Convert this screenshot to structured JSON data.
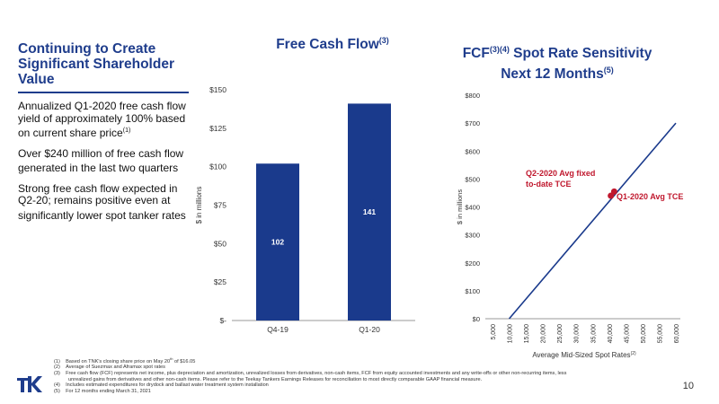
{
  "title": "Continuing to Create Significant Shareholder Value",
  "bullets": [
    {
      "text": "Annualized Q1-2020 free cash flow yield of approximately 100%  based on current share price",
      "sup": "(1)"
    },
    {
      "text": "Over $240 million of free cash flow generated in the last two quarters",
      "sup": ""
    },
    {
      "text": "Strong free cash flow expected in Q2-20; remains positive even at significantly lower spot tanker rates",
      "sup": ""
    }
  ],
  "chart_data": [
    {
      "type": "bar",
      "title": "Free Cash Flow",
      "title_sup": "(3)",
      "ylabel": "$ in millions",
      "categories": [
        "Q4-19",
        "Q1-20"
      ],
      "values": [
        102,
        141
      ],
      "data_labels": [
        "102",
        "141"
      ],
      "ylim": [
        0,
        150
      ],
      "yticks": [
        0,
        25,
        50,
        75,
        100,
        125,
        150
      ],
      "ytick_labels": [
        "$-",
        "$25",
        "$50",
        "$75",
        "$100",
        "$125",
        "$150"
      ],
      "color": "#1a3a8c",
      "grid": false
    },
    {
      "type": "line",
      "title": "FCF",
      "title_sup": "(3)(4)",
      "title_rest": " Spot Rate Sensitivity",
      "title_line2": "Next 12 Months",
      "title_line2_sup": "(5)",
      "xlabel": "Average Mid-Sized Spot Rates",
      "xlabel_sup": "(2)",
      "ylabel": "$ in millions",
      "xlim": [
        5000,
        60000
      ],
      "ylim": [
        0,
        800
      ],
      "xticks": [
        5000,
        10000,
        15000,
        20000,
        25000,
        30000,
        35000,
        40000,
        45000,
        50000,
        55000,
        60000
      ],
      "xtick_labels": [
        "5,000",
        "10,000",
        "15,000",
        "20,000",
        "25,000",
        "30,000",
        "35,000",
        "40,000",
        "45,000",
        "50,000",
        "55,000",
        "60,000"
      ],
      "yticks": [
        0,
        100,
        200,
        300,
        400,
        500,
        600,
        700,
        800
      ],
      "ytick_labels": [
        "$0",
        "$100",
        "$200",
        "$300",
        "$400",
        "$500",
        "$600",
        "$700",
        "$800"
      ],
      "series": [
        {
          "x": [
            10000,
            60000
          ],
          "y": [
            0,
            700
          ],
          "color": "#1a3a8c"
        }
      ],
      "points": [
        {
          "x": 40500,
          "y": 440,
          "color": "#c0182e"
        },
        {
          "x": 41500,
          "y": 455,
          "color": "#c0182e"
        }
      ],
      "annotations": [
        {
          "text": "Q2-2020 Avg fixed",
          "color": "#c0182e"
        },
        {
          "text": "to-date TCE",
          "color": "#c0182e"
        },
        {
          "text": "Q1-2020 Avg TCE",
          "color": "#c0182e"
        }
      ],
      "grid": false
    }
  ],
  "footnotes": [
    {
      "num": "(1)",
      "text": "Based on TNK's closing share price on May 20",
      "sup": "th",
      "rest": " of $16.05"
    },
    {
      "num": "(2)",
      "text": "Average of Suezmax and Aframax spot rates",
      "sup": "",
      "rest": ""
    },
    {
      "num": "(3)",
      "text": "Free cash flow (FCF) represents net income, plus depreciation and amortization, unrealized losses from derivatives, non-cash items, FCF from equity accounted investments and any write-offs or other non-recurring items, less",
      "sup": "",
      "rest": ""
    },
    {
      "num": "",
      "text": "unrealized gains from derivatives and other non-cash items. Please refer to the Teekay Tankers Earnings Releases for reconciliation to most directly comparable GAAP financial measure.",
      "sup": "",
      "rest": ""
    },
    {
      "num": "(4)",
      "text": "Includes estimated expenditures for drydock and ballast water treatment system installation",
      "sup": "",
      "rest": ""
    },
    {
      "num": "(5)",
      "text": "For 12 months ending March 31, 2021",
      "sup": "",
      "rest": ""
    }
  ],
  "page_number": "10",
  "colors": {
    "brand": "#1f3d8c",
    "accent": "#c0182e"
  }
}
